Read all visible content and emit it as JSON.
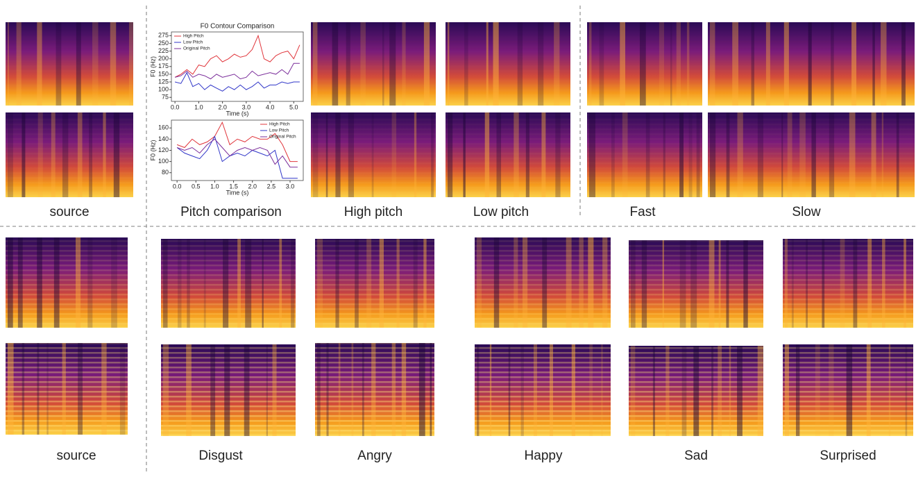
{
  "captions": [
    "source",
    "Pitch comparison",
    "High pitch",
    "Low pitch",
    "Fast",
    "Slow",
    "source",
    "Disgust",
    "Angry",
    "Happy",
    "Sad",
    "Surprised"
  ],
  "chart_data": [
    {
      "type": "line",
      "title": "F0 Contour Comparison",
      "x_label": "Time (s)",
      "y_label": "F0 (Hz)",
      "legend": "upper left",
      "x": [
        0,
        0.25,
        0.5,
        0.75,
        1,
        1.25,
        1.5,
        1.75,
        2,
        2.25,
        2.5,
        2.75,
        3,
        3.25,
        3.5,
        3.75,
        4,
        4.25,
        4.5,
        4.75,
        5,
        5.25
      ],
      "series": [
        {
          "name": "High Pitch",
          "color": "#e0343a",
          "values": [
            140,
            150,
            165,
            150,
            180,
            175,
            200,
            210,
            190,
            200,
            215,
            205,
            210,
            230,
            275,
            200,
            190,
            210,
            220,
            225,
            200,
            245
          ]
        },
        {
          "name": "Low Pitch",
          "color": "#2f35c8",
          "values": [
            125,
            120,
            155,
            110,
            120,
            100,
            115,
            105,
            95,
            110,
            100,
            115,
            100,
            110,
            125,
            105,
            115,
            115,
            125,
            120,
            125,
            125
          ]
        },
        {
          "name": "Original Pitch",
          "color": "#7a2d9a",
          "values": [
            140,
            145,
            160,
            140,
            150,
            145,
            135,
            150,
            140,
            145,
            150,
            135,
            140,
            160,
            145,
            150,
            155,
            150,
            165,
            150,
            185,
            185
          ]
        }
      ],
      "xlim": [
        -0.15,
        5.4
      ],
      "ylim": [
        62,
        287
      ],
      "xticks": [
        {
          "value": 0,
          "label": "0.0"
        },
        {
          "value": 1,
          "label": "1.0"
        },
        {
          "value": 2,
          "label": "2.0"
        },
        {
          "value": 3,
          "label": "3.0"
        },
        {
          "value": 4,
          "label": "4.0"
        },
        {
          "value": 5,
          "label": "5.0"
        }
      ],
      "yticks": [
        75,
        100,
        125,
        150,
        175,
        200,
        225,
        250,
        275
      ]
    },
    {
      "type": "line",
      "x_label": "Time (s)",
      "y_label": "F0 (Hz)",
      "legend": "upper right",
      "x": [
        0,
        0.2,
        0.4,
        0.6,
        0.8,
        1,
        1.2,
        1.4,
        1.6,
        1.8,
        2,
        2.2,
        2.4,
        2.6,
        2.8,
        3,
        3.2
      ],
      "series": [
        {
          "name": "High Pitch",
          "color": "#e0343a",
          "values": [
            130,
            125,
            140,
            130,
            135,
            145,
            170,
            130,
            140,
            135,
            145,
            140,
            140,
            150,
            130,
            100,
            100
          ]
        },
        {
          "name": "Low Pitch",
          "color": "#2f35c8",
          "values": [
            125,
            115,
            110,
            105,
            120,
            145,
            100,
            110,
            115,
            110,
            120,
            115,
            110,
            120,
            70,
            70,
            70
          ]
        },
        {
          "name": "Original Pitch",
          "color": "#7a2d9a",
          "values": [
            125,
            120,
            125,
            115,
            130,
            140,
            125,
            110,
            120,
            125,
            120,
            125,
            120,
            95,
            110,
            90,
            90
          ]
        }
      ],
      "xlim": [
        -0.15,
        3.35
      ],
      "ylim": [
        66,
        174
      ],
      "xticks": [
        {
          "value": 0,
          "label": "0.0"
        },
        {
          "value": 0.5,
          "label": "0.5"
        },
        {
          "value": 1,
          "label": "1.0"
        },
        {
          "value": 1.5,
          "label": "1.5"
        },
        {
          "value": 2,
          "label": "2.0"
        },
        {
          "value": 2.5,
          "label": "2.5"
        },
        {
          "value": 3,
          "label": "3.0"
        }
      ],
      "yticks": [
        80,
        100,
        120,
        140,
        160
      ]
    }
  ]
}
